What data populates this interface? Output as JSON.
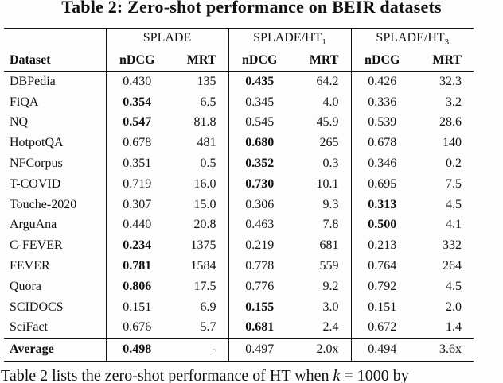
{
  "title": "Table 2: Zero-shot performance on BEIR datasets",
  "colors": {
    "text": "#111111",
    "background": "#fdfdfd",
    "rule": "#111111"
  },
  "table": {
    "dataset_header": "Dataset",
    "groups": [
      {
        "label": "SPLADE",
        "sub": ""
      },
      {
        "label": "SPLADE/HT",
        "sub": "1"
      },
      {
        "label": "SPLADE/HT",
        "sub": "3"
      }
    ],
    "subheaders": [
      "nDCG",
      "MRT"
    ],
    "rows": [
      {
        "dataset": "DBPedia",
        "cells": [
          {
            "v": "0.430",
            "b": false
          },
          {
            "v": "135",
            "b": false
          },
          {
            "v": "0.435",
            "b": true
          },
          {
            "v": "64.2",
            "b": false
          },
          {
            "v": "0.426",
            "b": false
          },
          {
            "v": "32.3",
            "b": false
          }
        ]
      },
      {
        "dataset": "FiQA",
        "cells": [
          {
            "v": "0.354",
            "b": true
          },
          {
            "v": "6.5",
            "b": false
          },
          {
            "v": "0.345",
            "b": false
          },
          {
            "v": "4.0",
            "b": false
          },
          {
            "v": "0.336",
            "b": false
          },
          {
            "v": "3.2",
            "b": false
          }
        ]
      },
      {
        "dataset": "NQ",
        "cells": [
          {
            "v": "0.547",
            "b": true
          },
          {
            "v": "81.8",
            "b": false
          },
          {
            "v": "0.545",
            "b": false
          },
          {
            "v": "45.9",
            "b": false
          },
          {
            "v": "0.539",
            "b": false
          },
          {
            "v": "28.6",
            "b": false
          }
        ]
      },
      {
        "dataset": "HotpotQA",
        "cells": [
          {
            "v": "0.678",
            "b": false
          },
          {
            "v": "481",
            "b": false
          },
          {
            "v": "0.680",
            "b": true
          },
          {
            "v": "265",
            "b": false
          },
          {
            "v": "0.678",
            "b": false
          },
          {
            "v": "140",
            "b": false
          }
        ]
      },
      {
        "dataset": "NFCorpus",
        "cells": [
          {
            "v": "0.351",
            "b": false
          },
          {
            "v": "0.5",
            "b": false
          },
          {
            "v": "0.352",
            "b": true
          },
          {
            "v": "0.3",
            "b": false
          },
          {
            "v": "0.346",
            "b": false
          },
          {
            "v": "0.2",
            "b": false
          }
        ]
      },
      {
        "dataset": "T-COVID",
        "cells": [
          {
            "v": "0.719",
            "b": false
          },
          {
            "v": "16.0",
            "b": false
          },
          {
            "v": "0.730",
            "b": true
          },
          {
            "v": "10.1",
            "b": false
          },
          {
            "v": "0.695",
            "b": false
          },
          {
            "v": "7.5",
            "b": false
          }
        ]
      },
      {
        "dataset": "Touche-2020",
        "cells": [
          {
            "v": "0.307",
            "b": false
          },
          {
            "v": "15.0",
            "b": false
          },
          {
            "v": "0.306",
            "b": false
          },
          {
            "v": "9.3",
            "b": false
          },
          {
            "v": "0.313",
            "b": true
          },
          {
            "v": "4.5",
            "b": false
          }
        ]
      },
      {
        "dataset": "ArguAna",
        "cells": [
          {
            "v": "0.440",
            "b": false
          },
          {
            "v": "20.8",
            "b": false
          },
          {
            "v": "0.463",
            "b": false
          },
          {
            "v": "7.8",
            "b": false
          },
          {
            "v": "0.500",
            "b": true
          },
          {
            "v": "4.1",
            "b": false
          }
        ]
      },
      {
        "dataset": "C-FEVER",
        "cells": [
          {
            "v": "0.234",
            "b": true
          },
          {
            "v": "1375",
            "b": false
          },
          {
            "v": "0.219",
            "b": false
          },
          {
            "v": "681",
            "b": false
          },
          {
            "v": "0.213",
            "b": false
          },
          {
            "v": "332",
            "b": false
          }
        ]
      },
      {
        "dataset": "FEVER",
        "cells": [
          {
            "v": "0.781",
            "b": true
          },
          {
            "v": "1584",
            "b": false
          },
          {
            "v": "0.778",
            "b": false
          },
          {
            "v": "559",
            "b": false
          },
          {
            "v": "0.764",
            "b": false
          },
          {
            "v": "264",
            "b": false
          }
        ]
      },
      {
        "dataset": "Quora",
        "cells": [
          {
            "v": "0.806",
            "b": true
          },
          {
            "v": "17.5",
            "b": false
          },
          {
            "v": "0.776",
            "b": false
          },
          {
            "v": "9.2",
            "b": false
          },
          {
            "v": "0.792",
            "b": false
          },
          {
            "v": "4.5",
            "b": false
          }
        ]
      },
      {
        "dataset": "SCIDOCS",
        "cells": [
          {
            "v": "0.151",
            "b": false
          },
          {
            "v": "6.9",
            "b": false
          },
          {
            "v": "0.155",
            "b": true
          },
          {
            "v": "3.0",
            "b": false
          },
          {
            "v": "0.151",
            "b": false
          },
          {
            "v": "2.0",
            "b": false
          }
        ]
      },
      {
        "dataset": "SciFact",
        "cells": [
          {
            "v": "0.676",
            "b": false
          },
          {
            "v": "5.7",
            "b": false
          },
          {
            "v": "0.681",
            "b": true
          },
          {
            "v": "2.4",
            "b": false
          },
          {
            "v": "0.672",
            "b": false
          },
          {
            "v": "1.4",
            "b": false
          }
        ]
      }
    ],
    "average": {
      "dataset": "Average",
      "cells": [
        {
          "v": "0.498",
          "b": true
        },
        {
          "v": "-",
          "b": false
        },
        {
          "v": "0.497",
          "b": false
        },
        {
          "v": "2.0x",
          "b": false
        },
        {
          "v": "0.494",
          "b": false
        },
        {
          "v": "3.6x",
          "b": false
        }
      ]
    }
  },
  "caption": {
    "before": "Table 2 lists the zero-shot performance of HT when ",
    "k": "k",
    "after": " = 1000 by"
  }
}
